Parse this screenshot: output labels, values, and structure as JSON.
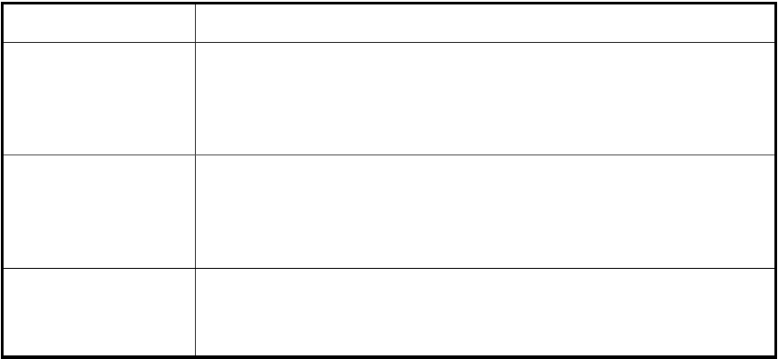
{
  "table": {
    "rows": [
      {
        "cells": [
          "",
          ""
        ]
      },
      {
        "cells": [
          "",
          ""
        ]
      },
      {
        "cells": [
          "",
          ""
        ]
      },
      {
        "cells": [
          "",
          ""
        ]
      }
    ]
  }
}
